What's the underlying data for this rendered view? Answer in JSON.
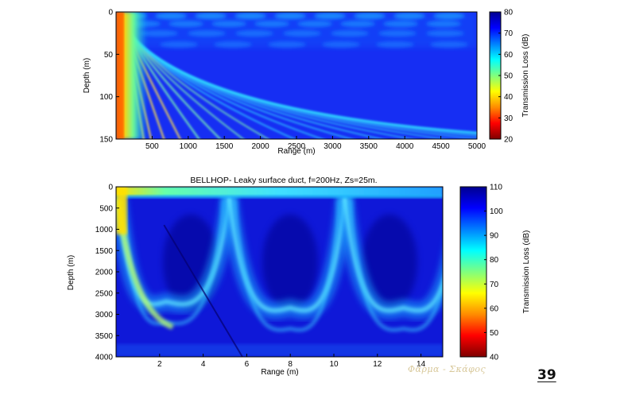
{
  "chart_data": [
    {
      "type": "heatmap",
      "title": "",
      "xlabel": "Range (m)",
      "ylabel": "Depth (m)",
      "xlim": [
        0,
        5000
      ],
      "ylim": [
        150,
        0
      ],
      "xticks": [
        500,
        1000,
        1500,
        2000,
        2500,
        3000,
        3500,
        4000,
        4500,
        5000
      ],
      "yticks": [
        0,
        50,
        100,
        150
      ],
      "colorbar": {
        "label": "Transmission Loss (dB)",
        "range": [
          20,
          80
        ],
        "ticks": [
          80,
          70,
          60,
          50,
          40,
          30,
          20
        ]
      },
      "colormap": [
        "#7f0000",
        "#ff0000",
        "#ff8c00",
        "#ffff00",
        "#7fff7f",
        "#00ffff",
        "#007fff",
        "#0000ff",
        "#00008f"
      ]
    },
    {
      "type": "heatmap",
      "title": "BELLHOP- Leaky surface duct, f=200Hz, Zs=25m.",
      "xlabel": "Range (m)",
      "ylabel": "Depth (m)",
      "xlim": [
        0,
        15
      ],
      "ylim": [
        4000,
        0
      ],
      "xticks": [
        2,
        4,
        6,
        8,
        10,
        12,
        14
      ],
      "yticks": [
        0,
        500,
        1000,
        1500,
        2000,
        2500,
        3000,
        3500,
        4000
      ],
      "colorbar": {
        "label": "Transmission Loss (dB)",
        "range": [
          40,
          110
        ],
        "ticks": [
          110,
          100,
          90,
          80,
          70,
          60,
          50,
          40
        ]
      },
      "colormap": [
        "#7f0000",
        "#ff0000",
        "#ff8c00",
        "#ffff00",
        "#7fff7f",
        "#00ffff",
        "#007fff",
        "#0000ff",
        "#00008f"
      ]
    }
  ],
  "watermark": "Φάρμα - Σκάφος",
  "slide_number": "39"
}
